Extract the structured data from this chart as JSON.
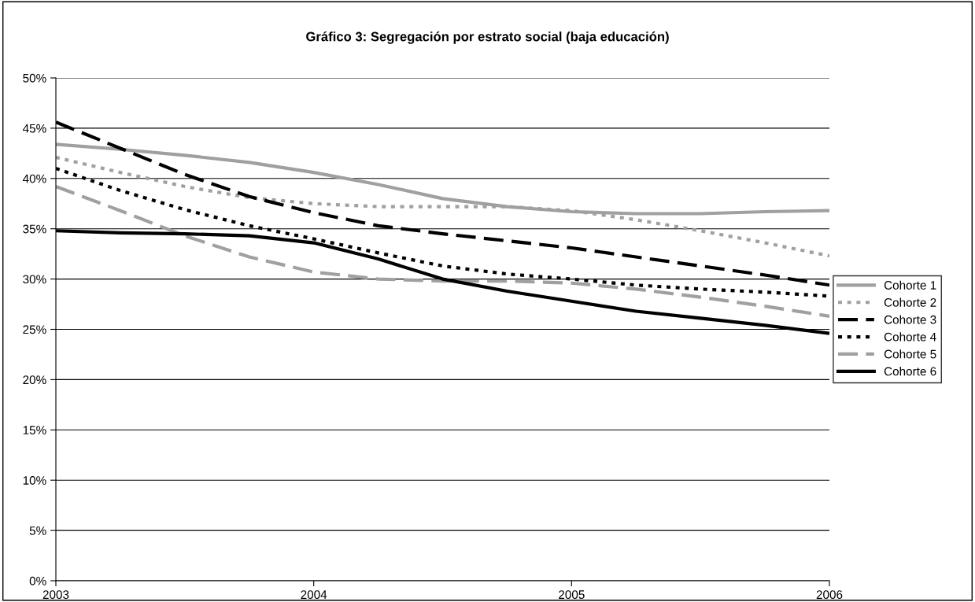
{
  "chart_data": {
    "type": "line",
    "title": "Gráfico 3: Segregación por estrato social (baja educación)",
    "x": [
      2003,
      2003.25,
      2003.5,
      2003.75,
      2004,
      2004.25,
      2004.5,
      2004.75,
      2005,
      2005.25,
      2005.5,
      2005.75,
      2006
    ],
    "xlim": [
      2003,
      2006
    ],
    "xticks": [
      2003,
      2004,
      2005,
      2006
    ],
    "ylim": [
      0,
      50
    ],
    "yticks": [
      {
        "value": 0,
        "label": "0%"
      },
      {
        "value": 5,
        "label": "5%"
      },
      {
        "value": 10,
        "label": "10%"
      },
      {
        "value": 15,
        "label": "15%"
      },
      {
        "value": 20,
        "label": "20%"
      },
      {
        "value": 25,
        "label": "25%"
      },
      {
        "value": 30,
        "label": "30%"
      },
      {
        "value": 35,
        "label": "35%"
      },
      {
        "value": 40,
        "label": "40%"
      },
      {
        "value": 45,
        "label": "45%"
      },
      {
        "value": 50,
        "label": "50%"
      }
    ],
    "grid": "y",
    "legend": "right",
    "series": [
      {
        "name": "Cohorte 1",
        "color": "#a0a0a0",
        "line_style": "solid",
        "values": [
          43.4,
          42.9,
          42.3,
          41.6,
          40.6,
          39.4,
          38.0,
          37.2,
          36.7,
          36.5,
          36.5,
          36.7,
          36.8
        ]
      },
      {
        "name": "Cohorte 2",
        "color": "#a0a0a0",
        "line_style": "dotted",
        "values": [
          42.1,
          40.6,
          39.2,
          38.1,
          37.5,
          37.2,
          37.2,
          37.2,
          36.8,
          35.9,
          34.8,
          33.6,
          32.3
        ]
      },
      {
        "name": "Cohorte 3",
        "color": "#000000",
        "line_style": "dashed",
        "values": [
          45.6,
          43.0,
          40.4,
          38.2,
          36.6,
          35.3,
          34.5,
          33.8,
          33.1,
          32.2,
          31.3,
          30.4,
          29.4
        ]
      },
      {
        "name": "Cohorte 4",
        "color": "#000000",
        "line_style": "dotted",
        "values": [
          41.0,
          38.8,
          36.9,
          35.3,
          34.0,
          32.6,
          31.3,
          30.5,
          30.0,
          29.4,
          29.0,
          28.7,
          28.3
        ]
      },
      {
        "name": "Cohorte 5",
        "color": "#a0a0a0",
        "line_style": "dashed",
        "values": [
          39.2,
          36.8,
          34.3,
          32.2,
          30.7,
          30.0,
          29.8,
          29.8,
          29.6,
          29.0,
          28.2,
          27.3,
          26.3
        ]
      },
      {
        "name": "Cohorte 6",
        "color": "#000000",
        "line_style": "solid",
        "values": [
          34.8,
          34.6,
          34.5,
          34.3,
          33.6,
          32.0,
          30.0,
          28.8,
          27.8,
          26.8,
          26.1,
          25.4,
          24.6
        ]
      }
    ]
  }
}
